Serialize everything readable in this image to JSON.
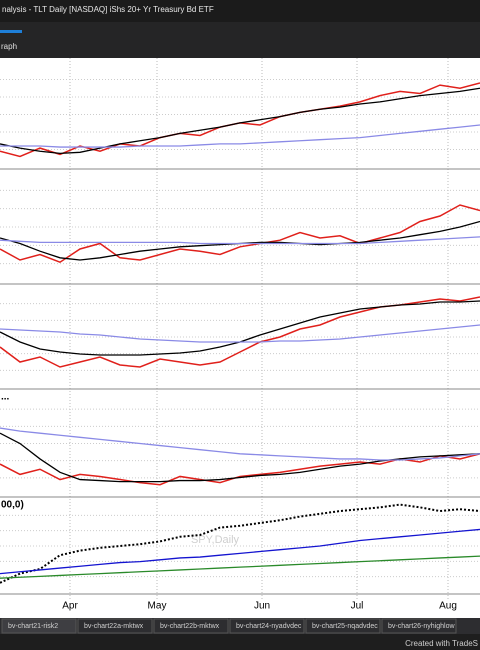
{
  "window": {
    "title": "nalysis - TLT Daily [NASDAQ] iShs 20+ Yr Treasury Bd ETF",
    "tab": "raph"
  },
  "panes": [
    {
      "series": [
        {
          "color": "#e0201b",
          "values": [
            15,
            10,
            18,
            12,
            20,
            15,
            22,
            20,
            28,
            32,
            30,
            38,
            42,
            40,
            48,
            52,
            55,
            58,
            62,
            68,
            72,
            70,
            78,
            75,
            80
          ]
        },
        {
          "color": "#000000",
          "values": [
            22,
            18,
            15,
            13,
            14,
            18,
            22,
            25,
            28,
            32,
            35,
            38,
            42,
            45,
            48,
            52,
            55,
            57,
            60,
            62,
            65,
            68,
            70,
            72,
            75
          ]
        },
        {
          "color": "#8a8ae6",
          "values": [
            20,
            20,
            20,
            19,
            19,
            19,
            19,
            20,
            20,
            20,
            21,
            22,
            22,
            23,
            24,
            25,
            26,
            27,
            28,
            30,
            32,
            34,
            36,
            38,
            40
          ]
        }
      ]
    },
    {
      "series": [
        {
          "color": "#e0201b",
          "values": [
            30,
            20,
            25,
            18,
            30,
            35,
            22,
            20,
            25,
            30,
            28,
            25,
            32,
            35,
            38,
            45,
            40,
            42,
            35,
            40,
            45,
            55,
            60,
            70,
            65
          ]
        },
        {
          "color": "#000000",
          "values": [
            40,
            35,
            28,
            22,
            20,
            22,
            25,
            28,
            30,
            32,
            33,
            34,
            35,
            36,
            36,
            35,
            34,
            35,
            36,
            38,
            40,
            43,
            46,
            50,
            55
          ]
        },
        {
          "color": "#8a8ae6",
          "values": [
            38,
            37,
            36,
            36,
            36,
            36,
            36,
            36,
            36,
            36,
            35,
            35,
            35,
            35,
            35,
            35,
            35,
            35,
            35,
            36,
            37,
            38,
            39,
            40,
            41
          ]
        }
      ]
    },
    {
      "series": [
        {
          "color": "#e0201b",
          "values": [
            40,
            25,
            30,
            20,
            25,
            30,
            22,
            20,
            28,
            25,
            22,
            25,
            35,
            45,
            50,
            58,
            62,
            70,
            75,
            80,
            82,
            85,
            88,
            86,
            90
          ]
        },
        {
          "color": "#000000",
          "values": [
            55,
            45,
            38,
            35,
            33,
            32,
            32,
            32,
            33,
            34,
            36,
            40,
            45,
            52,
            58,
            64,
            70,
            74,
            78,
            80,
            82,
            83,
            85,
            85,
            86
          ]
        },
        {
          "color": "#8a8ae6",
          "values": [
            58,
            57,
            56,
            55,
            53,
            52,
            50,
            48,
            47,
            46,
            45,
            45,
            45,
            45,
            46,
            46,
            47,
            48,
            50,
            52,
            54,
            56,
            58,
            60,
            62
          ]
        }
      ]
    },
    {
      "label": "...",
      "series": [
        {
          "color": "#e0201b",
          "values": [
            30,
            20,
            25,
            15,
            20,
            18,
            15,
            12,
            10,
            18,
            15,
            12,
            18,
            20,
            22,
            25,
            28,
            30,
            32,
            30,
            35,
            32,
            38,
            35,
            40
          ]
        },
        {
          "color": "#000000",
          "values": [
            60,
            50,
            35,
            22,
            15,
            14,
            13,
            13,
            13,
            14,
            14,
            15,
            17,
            19,
            20,
            22,
            25,
            28,
            30,
            33,
            35,
            37,
            38,
            39,
            40
          ]
        },
        {
          "color": "#8a8ae6",
          "values": [
            65,
            62,
            60,
            58,
            56,
            54,
            52,
            50,
            48,
            46,
            44,
            42,
            40,
            39,
            38,
            37,
            36,
            35,
            35,
            34,
            34,
            35,
            36,
            38,
            40
          ]
        }
      ]
    },
    {
      "label": "00,0)",
      "watermark": "SPY,Daily",
      "series": [
        {
          "color": "#000000",
          "dotted": true,
          "values": [
            10,
            20,
            25,
            40,
            45,
            48,
            50,
            52,
            55,
            60,
            62,
            70,
            72,
            75,
            78,
            82,
            85,
            88,
            90,
            92,
            95,
            92,
            88,
            90,
            88
          ]
        },
        {
          "color": "#1414d0",
          "values": [
            20,
            22,
            24,
            26,
            28,
            30,
            32,
            33,
            35,
            37,
            38,
            40,
            42,
            44,
            46,
            48,
            50,
            53,
            56,
            58,
            60,
            62,
            64,
            66,
            68
          ]
        },
        {
          "color": "#2a8a2a",
          "values": [
            15,
            16,
            17,
            18,
            19,
            20,
            21,
            22,
            23,
            24,
            25,
            26,
            27,
            28,
            29,
            30,
            31,
            32,
            33,
            34,
            35,
            36,
            37,
            38,
            39
          ]
        }
      ]
    }
  ],
  "months": [
    "Apr",
    "May",
    "Jun",
    "Jul",
    "Aug"
  ],
  "tabs": [
    "bv-chart21-risk2",
    "bv-chart22a-mktwx",
    "bv-chart22b-mktwx",
    "bv-chart24-nyadvdec",
    "bv-chart25-nqadvdec",
    "bv-chart26-nyhighlow"
  ],
  "footer": "Created with TradeS"
}
